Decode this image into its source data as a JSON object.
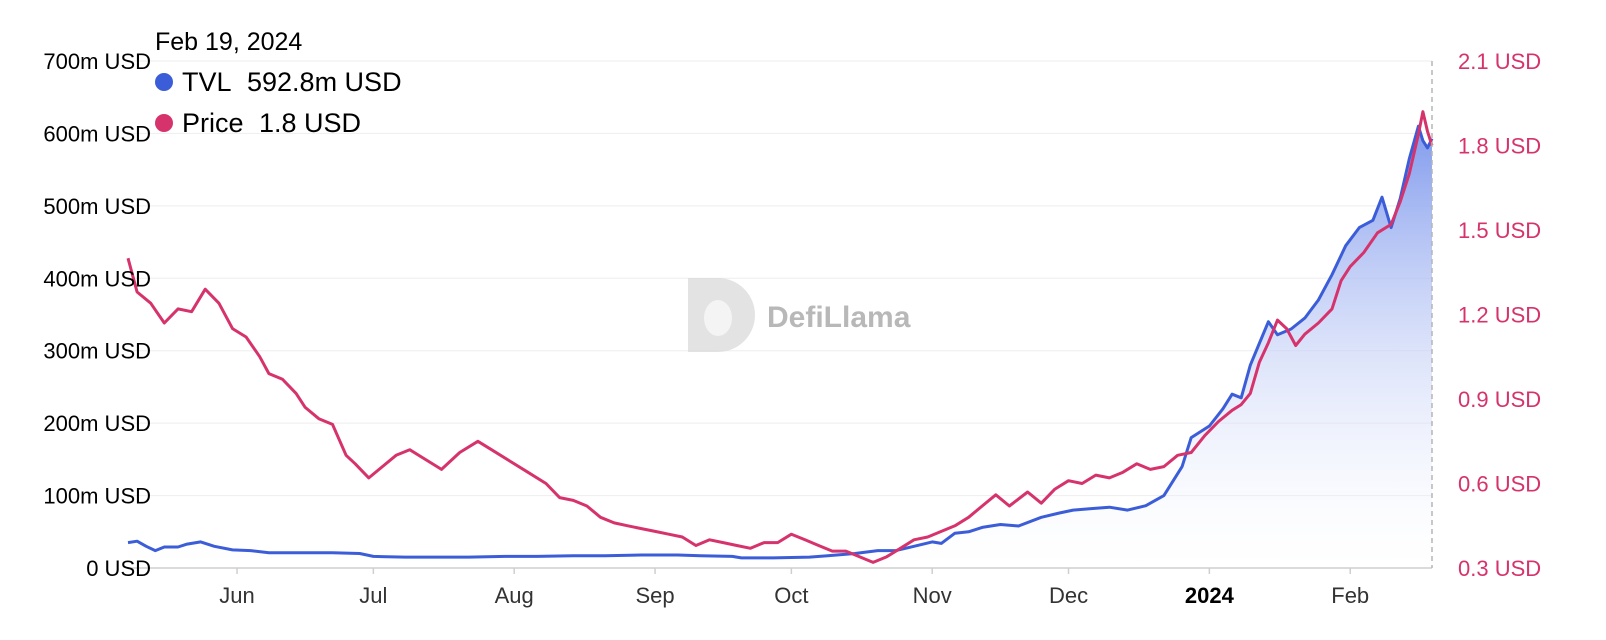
{
  "tooltip": {
    "date": "Feb 19, 2024",
    "items": [
      {
        "label": "TVL",
        "value": "592.8m USD",
        "color": "#3c5dd8"
      },
      {
        "label": "Price",
        "value": "1.8 USD",
        "color": "#d6336c"
      }
    ]
  },
  "watermark": "DefiLlama",
  "chart_data": {
    "type": "line",
    "title": "",
    "xlabel": "",
    "x_range": [
      "2023-05-08",
      "2024-02-19"
    ],
    "x_ticks": [
      {
        "date": "2023-06-01",
        "label": "Jun",
        "bold": false
      },
      {
        "date": "2023-07-01",
        "label": "Jul",
        "bold": false
      },
      {
        "date": "2023-08-01",
        "label": "Aug",
        "bold": false
      },
      {
        "date": "2023-09-01",
        "label": "Sep",
        "bold": false
      },
      {
        "date": "2023-10-01",
        "label": "Oct",
        "bold": false
      },
      {
        "date": "2023-11-01",
        "label": "Nov",
        "bold": false
      },
      {
        "date": "2023-12-01",
        "label": "Dec",
        "bold": false
      },
      {
        "date": "2024-01-01",
        "label": "2024",
        "bold": true
      },
      {
        "date": "2024-02-01",
        "label": "Feb",
        "bold": false
      }
    ],
    "y_left": {
      "min": 0,
      "max": 700000000,
      "color": "#000000",
      "ticks": [
        {
          "value": 0,
          "label": "0 USD"
        },
        {
          "value": 100000000,
          "label": "100m USD"
        },
        {
          "value": 200000000,
          "label": "200m USD"
        },
        {
          "value": 300000000,
          "label": "300m USD"
        },
        {
          "value": 400000000,
          "label": "400m USD"
        },
        {
          "value": 500000000,
          "label": "500m USD"
        },
        {
          "value": 600000000,
          "label": "600m USD"
        },
        {
          "value": 700000000,
          "label": "700m USD"
        }
      ]
    },
    "y_right": {
      "min": 0.3,
      "max": 2.1,
      "color": "#d6336c",
      "ticks": [
        {
          "value": 0.3,
          "label": "0.3 USD"
        },
        {
          "value": 0.6,
          "label": "0.6 USD"
        },
        {
          "value": 0.9,
          "label": "0.9 USD"
        },
        {
          "value": 1.2,
          "label": "1.2 USD"
        },
        {
          "value": 1.5,
          "label": "1.5 USD"
        },
        {
          "value": 1.8,
          "label": "1.8 USD"
        },
        {
          "value": 2.1,
          "label": "2.1 USD"
        }
      ]
    },
    "grid": true,
    "series": [
      {
        "name": "TVL",
        "axis": "left",
        "color": "#3c5dd8",
        "area": true,
        "points": [
          [
            "2023-05-08",
            35000000
          ],
          [
            "2023-05-10",
            37000000
          ],
          [
            "2023-05-12",
            30000000
          ],
          [
            "2023-05-14",
            24000000
          ],
          [
            "2023-05-16",
            29000000
          ],
          [
            "2023-05-19",
            29000000
          ],
          [
            "2023-05-21",
            33000000
          ],
          [
            "2023-05-24",
            36000000
          ],
          [
            "2023-05-27",
            30000000
          ],
          [
            "2023-05-31",
            25000000
          ],
          [
            "2023-06-04",
            24000000
          ],
          [
            "2023-06-08",
            21000000
          ],
          [
            "2023-06-15",
            21000000
          ],
          [
            "2023-06-22",
            21000000
          ],
          [
            "2023-06-28",
            20000000
          ],
          [
            "2023-07-01",
            16000000
          ],
          [
            "2023-07-08",
            15000000
          ],
          [
            "2023-07-22",
            15000000
          ],
          [
            "2023-07-30",
            16000000
          ],
          [
            "2023-08-06",
            16000000
          ],
          [
            "2023-08-14",
            17000000
          ],
          [
            "2023-08-21",
            17000000
          ],
          [
            "2023-08-29",
            18000000
          ],
          [
            "2023-09-06",
            18000000
          ],
          [
            "2023-09-11",
            17000000
          ],
          [
            "2023-09-18",
            16000000
          ],
          [
            "2023-09-20",
            14000000
          ],
          [
            "2023-09-27",
            14000000
          ],
          [
            "2023-10-05",
            15000000
          ],
          [
            "2023-10-09",
            17000000
          ],
          [
            "2023-10-15",
            20000000
          ],
          [
            "2023-10-20",
            24000000
          ],
          [
            "2023-10-24",
            24000000
          ],
          [
            "2023-10-28",
            30000000
          ],
          [
            "2023-11-01",
            36000000
          ],
          [
            "2023-11-03",
            34000000
          ],
          [
            "2023-11-06",
            48000000
          ],
          [
            "2023-11-09",
            50000000
          ],
          [
            "2023-11-12",
            56000000
          ],
          [
            "2023-11-16",
            60000000
          ],
          [
            "2023-11-20",
            58000000
          ],
          [
            "2023-11-25",
            70000000
          ],
          [
            "2023-11-29",
            76000000
          ],
          [
            "2023-12-02",
            80000000
          ],
          [
            "2023-12-06",
            82000000
          ],
          [
            "2023-12-10",
            84000000
          ],
          [
            "2023-12-14",
            80000000
          ],
          [
            "2023-12-18",
            86000000
          ],
          [
            "2023-12-22",
            100000000
          ],
          [
            "2023-12-26",
            140000000
          ],
          [
            "2023-12-28",
            180000000
          ],
          [
            "2024-01-01",
            196000000
          ],
          [
            "2024-01-04",
            220000000
          ],
          [
            "2024-01-06",
            240000000
          ],
          [
            "2024-01-08",
            235000000
          ],
          [
            "2024-01-10",
            280000000
          ],
          [
            "2024-01-12",
            310000000
          ],
          [
            "2024-01-14",
            340000000
          ],
          [
            "2024-01-16",
            322000000
          ],
          [
            "2024-01-19",
            330000000
          ],
          [
            "2024-01-22",
            345000000
          ],
          [
            "2024-01-25",
            370000000
          ],
          [
            "2024-01-28",
            405000000
          ],
          [
            "2024-01-31",
            445000000
          ],
          [
            "2024-02-03",
            470000000
          ],
          [
            "2024-02-06",
            480000000
          ],
          [
            "2024-02-08",
            512000000
          ],
          [
            "2024-02-10",
            470000000
          ],
          [
            "2024-02-12",
            510000000
          ],
          [
            "2024-02-14",
            565000000
          ],
          [
            "2024-02-16",
            610000000
          ],
          [
            "2024-02-17",
            590000000
          ],
          [
            "2024-02-18",
            580000000
          ],
          [
            "2024-02-19",
            592800000
          ]
        ]
      },
      {
        "name": "Price",
        "axis": "right",
        "color": "#d6336c",
        "area": false,
        "points": [
          [
            "2023-05-08",
            1.4
          ],
          [
            "2023-05-10",
            1.28
          ],
          [
            "2023-05-13",
            1.24
          ],
          [
            "2023-05-16",
            1.17
          ],
          [
            "2023-05-19",
            1.22
          ],
          [
            "2023-05-22",
            1.21
          ],
          [
            "2023-05-25",
            1.29
          ],
          [
            "2023-05-28",
            1.24
          ],
          [
            "2023-05-31",
            1.15
          ],
          [
            "2023-06-03",
            1.12
          ],
          [
            "2023-06-06",
            1.05
          ],
          [
            "2023-06-08",
            0.99
          ],
          [
            "2023-06-11",
            0.97
          ],
          [
            "2023-06-14",
            0.92
          ],
          [
            "2023-06-16",
            0.87
          ],
          [
            "2023-06-19",
            0.83
          ],
          [
            "2023-06-22",
            0.81
          ],
          [
            "2023-06-25",
            0.7
          ],
          [
            "2023-06-27",
            0.67
          ],
          [
            "2023-06-30",
            0.62
          ],
          [
            "2023-07-03",
            0.66
          ],
          [
            "2023-07-06",
            0.7
          ],
          [
            "2023-07-09",
            0.72
          ],
          [
            "2023-07-12",
            0.69
          ],
          [
            "2023-07-16",
            0.65
          ],
          [
            "2023-07-20",
            0.71
          ],
          [
            "2023-07-24",
            0.75
          ],
          [
            "2023-07-27",
            0.72
          ],
          [
            "2023-07-31",
            0.68
          ],
          [
            "2023-08-04",
            0.64
          ],
          [
            "2023-08-08",
            0.6
          ],
          [
            "2023-08-11",
            0.55
          ],
          [
            "2023-08-14",
            0.54
          ],
          [
            "2023-08-17",
            0.52
          ],
          [
            "2023-08-20",
            0.48
          ],
          [
            "2023-08-23",
            0.46
          ],
          [
            "2023-08-26",
            0.45
          ],
          [
            "2023-08-29",
            0.44
          ],
          [
            "2023-09-01",
            0.43
          ],
          [
            "2023-09-04",
            0.42
          ],
          [
            "2023-09-07",
            0.41
          ],
          [
            "2023-09-10",
            0.38
          ],
          [
            "2023-09-13",
            0.4
          ],
          [
            "2023-09-16",
            0.39
          ],
          [
            "2023-09-19",
            0.38
          ],
          [
            "2023-09-22",
            0.37
          ],
          [
            "2023-09-25",
            0.39
          ],
          [
            "2023-09-28",
            0.39
          ],
          [
            "2023-10-01",
            0.42
          ],
          [
            "2023-10-04",
            0.4
          ],
          [
            "2023-10-07",
            0.38
          ],
          [
            "2023-10-10",
            0.36
          ],
          [
            "2023-10-13",
            0.36
          ],
          [
            "2023-10-16",
            0.34
          ],
          [
            "2023-10-19",
            0.32
          ],
          [
            "2023-10-22",
            0.34
          ],
          [
            "2023-10-25",
            0.37
          ],
          [
            "2023-10-28",
            0.4
          ],
          [
            "2023-10-31",
            0.41
          ],
          [
            "2023-11-03",
            0.43
          ],
          [
            "2023-11-06",
            0.45
          ],
          [
            "2023-11-09",
            0.48
          ],
          [
            "2023-11-12",
            0.52
          ],
          [
            "2023-11-15",
            0.56
          ],
          [
            "2023-11-18",
            0.52
          ],
          [
            "2023-11-22",
            0.57
          ],
          [
            "2023-11-25",
            0.53
          ],
          [
            "2023-11-28",
            0.58
          ],
          [
            "2023-12-01",
            0.61
          ],
          [
            "2023-12-04",
            0.6
          ],
          [
            "2023-12-07",
            0.63
          ],
          [
            "2023-12-10",
            0.62
          ],
          [
            "2023-12-13",
            0.64
          ],
          [
            "2023-12-16",
            0.67
          ],
          [
            "2023-12-19",
            0.65
          ],
          [
            "2023-12-22",
            0.66
          ],
          [
            "2023-12-25",
            0.7
          ],
          [
            "2023-12-28",
            0.71
          ],
          [
            "2023-12-31",
            0.77
          ],
          [
            "2024-01-03",
            0.82
          ],
          [
            "2024-01-06",
            0.86
          ],
          [
            "2024-01-08",
            0.88
          ],
          [
            "2024-01-10",
            0.92
          ],
          [
            "2024-01-12",
            1.03
          ],
          [
            "2024-01-14",
            1.1
          ],
          [
            "2024-01-16",
            1.18
          ],
          [
            "2024-01-18",
            1.15
          ],
          [
            "2024-01-20",
            1.09
          ],
          [
            "2024-01-22",
            1.13
          ],
          [
            "2024-01-25",
            1.17
          ],
          [
            "2024-01-28",
            1.22
          ],
          [
            "2024-01-30",
            1.32
          ],
          [
            "2024-02-01",
            1.37
          ],
          [
            "2024-02-04",
            1.42
          ],
          [
            "2024-02-07",
            1.49
          ],
          [
            "2024-02-10",
            1.52
          ],
          [
            "2024-02-12",
            1.6
          ],
          [
            "2024-02-14",
            1.7
          ],
          [
            "2024-02-16",
            1.84
          ],
          [
            "2024-02-17",
            1.92
          ],
          [
            "2024-02-18",
            1.85
          ],
          [
            "2024-02-19",
            1.8
          ]
        ]
      }
    ]
  }
}
